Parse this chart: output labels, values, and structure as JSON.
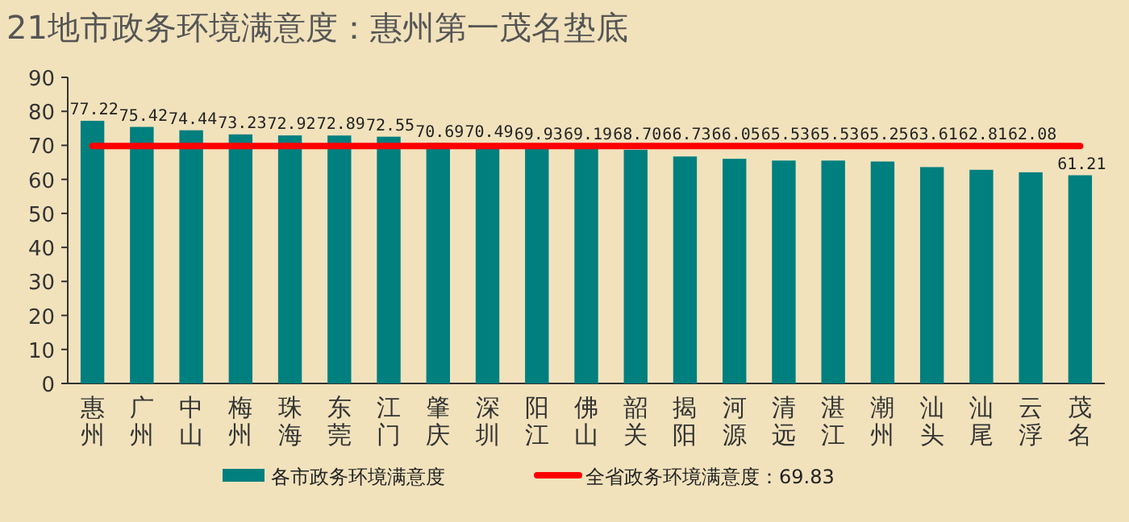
{
  "chart_data": {
    "type": "bar",
    "title": "21地市政务环境满意度：惠州第一茂名垫底",
    "categories": [
      "惠州",
      "广州",
      "中山",
      "梅州",
      "珠海",
      "东莞",
      "江门",
      "肇庆",
      "深圳",
      "阳江",
      "佛山",
      "韶关",
      "揭阳",
      "河源",
      "清远",
      "湛江",
      "潮州",
      "汕头",
      "汕尾",
      "云浮",
      "茂名"
    ],
    "series": [
      {
        "name": "各市政务环境满意度",
        "color": "#007f7f",
        "values": [
          77.22,
          75.42,
          74.44,
          73.23,
          72.92,
          72.89,
          72.55,
          70.69,
          70.49,
          69.93,
          69.19,
          68.7,
          66.73,
          66.05,
          65.53,
          65.53,
          65.25,
          63.61,
          62.81,
          62.08,
          61.21
        ],
        "value_labels": [
          "77.22",
          "75.42",
          "74.44",
          "73.23",
          "72.92",
          "72.89",
          "72.55",
          "70.69",
          "70.49",
          "69.93",
          "69.19",
          "68.70",
          "66.73",
          "66.05",
          "65.53",
          "65.53",
          "65.25",
          "63.61",
          "62.81",
          "62.08",
          "61.21"
        ]
      }
    ],
    "ref_lines": [
      {
        "axis": "y",
        "value": 69.83,
        "label": "全省政务环境满意度：69.83",
        "color": "#ff0000"
      }
    ],
    "ylim": [
      0,
      90
    ],
    "yticks": [
      0,
      10,
      20,
      30,
      40,
      50,
      60,
      70,
      80,
      90
    ],
    "legend": "bottom",
    "grid": false
  }
}
